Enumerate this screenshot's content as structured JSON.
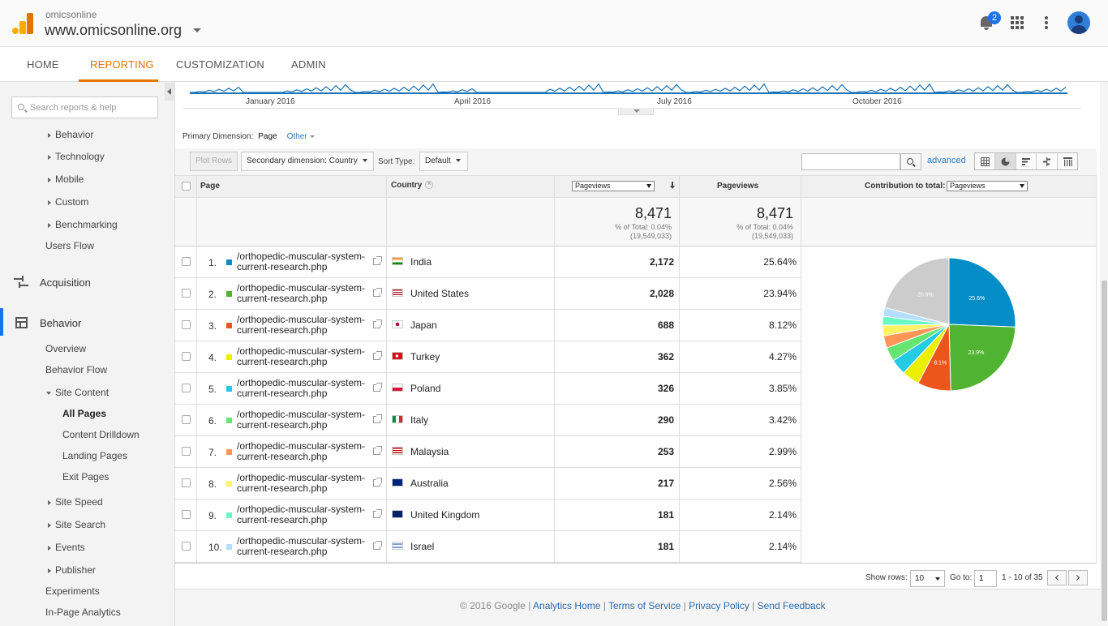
{
  "header": {
    "account_small": "omicsonline",
    "property": "www.omicsonline.org",
    "notification_count": "2"
  },
  "nav": {
    "tabs": [
      "HOME",
      "REPORTING",
      "CUSTOMIZATION",
      "ADMIN"
    ],
    "active": "REPORTING"
  },
  "sidebar": {
    "search_placeholder": "Search reports & help",
    "items": [
      {
        "label": "Behavior",
        "type": "expandable"
      },
      {
        "label": "Technology",
        "type": "expandable"
      },
      {
        "label": "Mobile",
        "type": "expandable"
      },
      {
        "label": "Custom",
        "type": "expandable"
      },
      {
        "label": "Benchmarking",
        "type": "expandable"
      },
      {
        "label": "Users Flow",
        "type": "link"
      }
    ],
    "acquisition": "Acquisition",
    "behavior": "Behavior",
    "behavior_items": [
      {
        "label": "Overview"
      },
      {
        "label": "Behavior Flow"
      },
      {
        "label": "Site Content"
      },
      {
        "label": "All Pages"
      },
      {
        "label": "Content Drilldown"
      },
      {
        "label": "Landing Pages"
      },
      {
        "label": "Exit Pages"
      },
      {
        "label": "Site Speed"
      },
      {
        "label": "Site Search"
      },
      {
        "label": "Events"
      },
      {
        "label": "Publisher"
      },
      {
        "label": "Experiments"
      },
      {
        "label": "In-Page Analytics"
      }
    ]
  },
  "timeline": {
    "labels": [
      "January 2016",
      "April 2016",
      "July 2016",
      "October 2016"
    ],
    "line_color": "#1a73b8"
  },
  "dimensions": {
    "primary_label": "Primary Dimension:",
    "primary_value": "Page",
    "other": "Other"
  },
  "toolbar": {
    "plot_rows": "Plot Rows",
    "secondary_dimension": "Secondary dimension: Country",
    "sort_type_label": "Sort Type:",
    "sort_type_value": "Default",
    "search_value": "",
    "advanced": "advanced"
  },
  "table": {
    "headers": {
      "page": "Page",
      "country": "Country",
      "metric_select": "Pageviews",
      "pageviews": "Pageviews",
      "contribution_label": "Contribution to total:",
      "contribution_select": "Pageviews"
    },
    "totals": {
      "pageviews": "8,471",
      "pct_label": "% of Total: 0.04%",
      "pct_base": "(19,549,033)",
      "pageviews2": "8,471",
      "pct_label2": "% of Total: 0.04%",
      "pct_base2": "(19,549,033)"
    },
    "rows": [
      {
        "idx": "1.",
        "page": "/orthopedic-muscular-system-current-research.php",
        "country": "India",
        "pageviews": "2,172",
        "pct": "25.64%",
        "color": "#058dc7"
      },
      {
        "idx": "2.",
        "page": "/orthopedic-muscular-system-current-research.php",
        "country": "United States",
        "pageviews": "2,028",
        "pct": "23.94%",
        "color": "#50b432"
      },
      {
        "idx": "3.",
        "page": "/orthopedic-muscular-system-current-research.php",
        "country": "Japan",
        "pageviews": "688",
        "pct": "8.12%",
        "color": "#ed561b"
      },
      {
        "idx": "4.",
        "page": "/orthopedic-muscular-system-current-research.php",
        "country": "Turkey",
        "pageviews": "362",
        "pct": "4.27%",
        "color": "#edef00"
      },
      {
        "idx": "5.",
        "page": "/orthopedic-muscular-system-current-research.php",
        "country": "Poland",
        "pageviews": "326",
        "pct": "3.85%",
        "color": "#24cbe5"
      },
      {
        "idx": "6.",
        "page": "/orthopedic-muscular-system-current-research.php",
        "country": "Italy",
        "pageviews": "290",
        "pct": "3.42%",
        "color": "#64e572"
      },
      {
        "idx": "7.",
        "page": "/orthopedic-muscular-system-current-research.php",
        "country": "Malaysia",
        "pageviews": "253",
        "pct": "2.99%",
        "color": "#ff9655"
      },
      {
        "idx": "8.",
        "page": "/orthopedic-muscular-system-current-research.php",
        "country": "Australia",
        "pageviews": "217",
        "pct": "2.56%",
        "color": "#fff263"
      },
      {
        "idx": "9.",
        "page": "/orthopedic-muscular-system-current-research.php",
        "country": "United Kingdom",
        "pageviews": "181",
        "pct": "2.14%",
        "color": "#6af9c4"
      },
      {
        "idx": "10.",
        "page": "/orthopedic-muscular-system-current-research.php",
        "country": "Israel",
        "pageviews": "181",
        "pct": "2.14%",
        "color": "#b2deff"
      }
    ]
  },
  "chart_data": {
    "type": "pie",
    "categories": [
      "India",
      "United States",
      "Japan",
      "Turkey",
      "Poland",
      "Italy",
      "Malaysia",
      "Australia",
      "United Kingdom",
      "Israel",
      "Other"
    ],
    "values": [
      25.64,
      23.94,
      8.12,
      4.27,
      3.85,
      3.42,
      2.99,
      2.56,
      2.14,
      2.14,
      20.93
    ],
    "colors": [
      "#058dc7",
      "#50b432",
      "#ed561b",
      "#edef00",
      "#24cbe5",
      "#64e572",
      "#ff9655",
      "#fff263",
      "#6af9c4",
      "#b2deff",
      "#cccccc"
    ],
    "data_labels": [
      "25.6%",
      "23.9%",
      "8.1%",
      "",
      "",
      "",
      "",
      "",
      "",
      "",
      "20.9%"
    ]
  },
  "pagination": {
    "show_rows_label": "Show rows:",
    "show_rows_value": "10",
    "goto_label": "Go to:",
    "goto_value": "1",
    "range": "1 - 10 of 35"
  },
  "footer": {
    "copyright": "© 2016 Google",
    "links": [
      "Analytics Home",
      "Terms of Service",
      "Privacy Policy",
      "Send Feedback"
    ]
  }
}
